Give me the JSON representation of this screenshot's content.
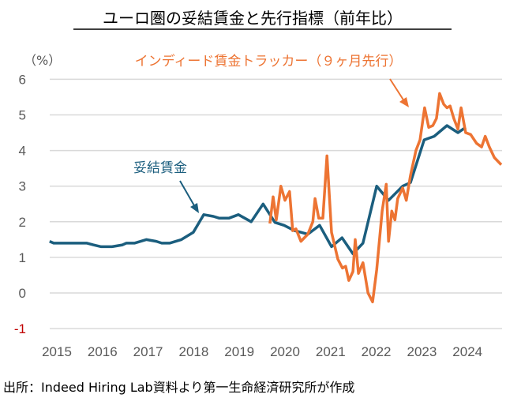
{
  "chart_data": {
    "type": "line",
    "title": "ユーロ圏の妥結賃金と先行指標（前年比）",
    "ylabel": "（%）",
    "xlabel": "",
    "ylim": [
      -1,
      6
    ],
    "xlim": [
      2014.84,
      2024.76
    ],
    "y_ticks": [
      "-1",
      "0",
      "1",
      "2",
      "3",
      "4",
      "5",
      "6"
    ],
    "y_tick_values": [
      -1,
      0,
      1,
      2,
      3,
      4,
      5,
      6
    ],
    "x_ticks": [
      "2015",
      "2016",
      "2017",
      "2018",
      "2019",
      "2020",
      "2021",
      "2022",
      "2023",
      "2024"
    ],
    "x_tick_values": [
      2015,
      2016,
      2017,
      2018,
      2019,
      2020,
      2021,
      2022,
      2023,
      2024
    ],
    "grid": true,
    "series": [
      {
        "name": "妥結賃金",
        "color": "#1b5e7e",
        "x": [
          2014.84,
          2014.93,
          2015.66,
          2015.8,
          2015.97,
          2016.21,
          2016.44,
          2016.52,
          2016.7,
          2016.96,
          2017.18,
          2017.3,
          2017.47,
          2017.73,
          2017.99,
          2018.22,
          2018.43,
          2018.56,
          2018.77,
          2018.98,
          2019.26,
          2019.52,
          2019.78,
          2019.98,
          2020.21,
          2020.36,
          2020.5,
          2020.76,
          2021.02,
          2021.25,
          2021.49,
          2021.71,
          2022.01,
          2022.27,
          2022.58,
          2022.75,
          2023.05,
          2023.27,
          2023.55,
          2023.79,
          2023.96
        ],
        "y": [
          1.45,
          1.4,
          1.4,
          1.35,
          1.3,
          1.3,
          1.35,
          1.4,
          1.4,
          1.5,
          1.45,
          1.4,
          1.4,
          1.5,
          1.7,
          2.2,
          2.15,
          2.1,
          2.1,
          2.2,
          2.0,
          2.5,
          1.98,
          1.9,
          1.75,
          1.7,
          1.65,
          1.9,
          1.3,
          1.55,
          1.1,
          1.4,
          3.0,
          2.6,
          3.0,
          3.1,
          4.3,
          4.4,
          4.7,
          4.5,
          4.65
        ]
      },
      {
        "name": "インディード賃金トラッカー（９ヶ月先行）",
        "color": "#ed7433",
        "x": [
          2019.67,
          2019.74,
          2019.81,
          2019.91,
          2020.0,
          2020.1,
          2020.17,
          2020.24,
          2020.35,
          2020.5,
          2020.61,
          2020.66,
          2020.74,
          2020.83,
          2020.92,
          2021.02,
          2021.16,
          2021.26,
          2021.33,
          2021.4,
          2021.49,
          2021.54,
          2021.61,
          2021.71,
          2021.82,
          2021.92,
          2022.01,
          2022.13,
          2022.22,
          2022.27,
          2022.34,
          2022.41,
          2022.47,
          2022.58,
          2022.66,
          2022.75,
          2022.87,
          2022.96,
          2023.06,
          2023.15,
          2023.24,
          2023.32,
          2023.39,
          2023.48,
          2023.55,
          2023.62,
          2023.7,
          2023.79,
          2023.86,
          2023.96,
          2024.07,
          2024.2,
          2024.31,
          2024.39,
          2024.48,
          2024.59,
          2024.74
        ],
        "y": [
          1.95,
          2.7,
          2.05,
          3.0,
          2.6,
          2.85,
          1.75,
          1.8,
          1.45,
          1.65,
          2.0,
          2.65,
          2.1,
          2.1,
          3.85,
          1.7,
          0.95,
          0.7,
          0.75,
          0.35,
          0.6,
          1.5,
          0.55,
          0.85,
          0.0,
          -0.25,
          0.65,
          2.3,
          3.05,
          1.45,
          2.3,
          2.05,
          2.65,
          2.95,
          2.6,
          3.3,
          4.0,
          4.3,
          5.2,
          4.65,
          4.7,
          4.9,
          5.6,
          5.3,
          5.2,
          5.25,
          4.9,
          4.6,
          5.2,
          4.5,
          4.45,
          4.2,
          4.1,
          4.4,
          4.1,
          3.8,
          3.6
        ]
      }
    ],
    "annotations": [
      "妥結賃金",
      "インディード賃金トラッカー（９ヶ月先行）"
    ],
    "negative_tick_color": "#c00000",
    "source": "出所：Indeed Hiring Lab資料より第一生命経済研究所が作成"
  }
}
